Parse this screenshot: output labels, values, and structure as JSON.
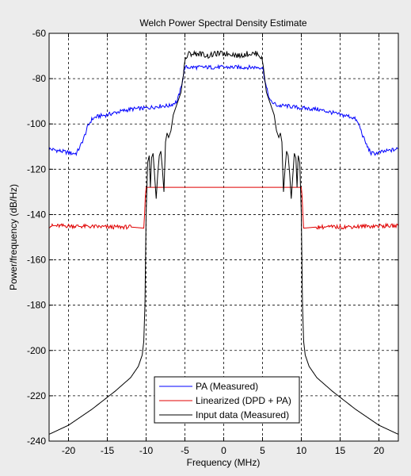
{
  "chart_data": {
    "type": "line",
    "title": "Welch Power Spectral Density Estimate",
    "xlabel": "Frequency (MHz)",
    "ylabel": "Power/frequency (dB/Hz)",
    "xlim": [
      -22.5,
      22.5
    ],
    "ylim": [
      -240,
      -60
    ],
    "xticks": [
      -20,
      -15,
      -10,
      -5,
      0,
      5,
      10,
      15,
      20
    ],
    "yticks": [
      -60,
      -80,
      -100,
      -120,
      -140,
      -160,
      -180,
      -200,
      -220,
      -240
    ],
    "grid": true,
    "legend_position": "bottom-center",
    "series": [
      {
        "name": "PA (Measured)",
        "color": "#0000ff",
        "x": [
          -22.5,
          -21,
          -19.5,
          -19,
          -18.5,
          -18,
          -17.5,
          -17,
          -16.5,
          -16,
          -15,
          -14,
          -12,
          -10,
          -8,
          -7,
          -6.5,
          -6,
          -5.5,
          -5,
          5,
          5.5,
          6,
          6.5,
          7,
          8,
          10,
          12,
          14,
          15,
          16,
          16.5,
          17,
          17.5,
          18,
          18.5,
          19,
          19.5,
          21,
          22.5
        ],
        "y": [
          -111,
          -112,
          -113,
          -113,
          -110,
          -106,
          -101,
          -98,
          -97,
          -96.5,
          -96,
          -95,
          -93.5,
          -93,
          -92,
          -92,
          -91,
          -90,
          -84,
          -75,
          -75,
          -84,
          -90,
          -91,
          -92,
          -92,
          -93,
          -93.5,
          -95,
          -96,
          -96.5,
          -97,
          -98,
          -101,
          -106,
          -110,
          -113,
          -113,
          -112,
          -111
        ]
      },
      {
        "name": "Linearized (DPD + PA)",
        "color": "#e00000",
        "x": [
          -22.5,
          -20,
          -15,
          -12,
          -10.3,
          -10.2,
          -10.1,
          -10,
          10,
          10.1,
          10.2,
          10.3,
          12,
          15,
          20,
          22.5
        ],
        "y": [
          -145,
          -145,
          -145.5,
          -145.5,
          -146,
          -140,
          -132,
          -128,
          -128,
          -132,
          -140,
          -146,
          -145.5,
          -145.5,
          -145,
          -145
        ]
      },
      {
        "name": "Input data (Measured)",
        "color": "#000000",
        "x": [
          -22.5,
          -20,
          -17,
          -14,
          -12,
          -11,
          -10.5,
          -10.3,
          -10.15,
          -10,
          -9.8,
          -9.6,
          -9.45,
          -9.3,
          -9.1,
          -8.9,
          -8.7,
          -8.5,
          -8.3,
          -8.1,
          -7.9,
          -7.7,
          -7.5,
          -7.3,
          -7.1,
          -6.8,
          -6.5,
          -6,
          -5.5,
          -5,
          -4.5,
          -4,
          -3,
          -2,
          -1,
          0,
          1,
          2,
          3,
          4,
          4.5,
          5,
          5.5,
          6,
          6.5,
          6.8,
          7.1,
          7.3,
          7.5,
          7.7,
          7.9,
          8.1,
          8.3,
          8.5,
          8.7,
          8.9,
          9.1,
          9.3,
          9.45,
          9.6,
          9.8,
          10,
          10.15,
          10.3,
          10.5,
          11,
          12,
          14,
          17,
          20,
          22.5
        ],
        "y": [
          -237,
          -233,
          -226,
          -218,
          -212,
          -207,
          -202,
          -196,
          -180,
          -140,
          -117,
          -114,
          -128,
          -115,
          -113,
          -123,
          -133,
          -122,
          -114,
          -112,
          -120,
          -130,
          -108,
          -104,
          -106,
          -103,
          -96,
          -91,
          -86,
          -72,
          -69,
          -69,
          -69,
          -70,
          -69,
          -69,
          -69,
          -70,
          -69,
          -69,
          -69,
          -72,
          -86,
          -91,
          -96,
          -103,
          -106,
          -104,
          -108,
          -130,
          -120,
          -112,
          -114,
          -122,
          -133,
          -123,
          -113,
          -115,
          -128,
          -114,
          -117,
          -140,
          -180,
          -196,
          -202,
          -207,
          -212,
          -218,
          -226,
          -233,
          -237
        ]
      }
    ]
  }
}
